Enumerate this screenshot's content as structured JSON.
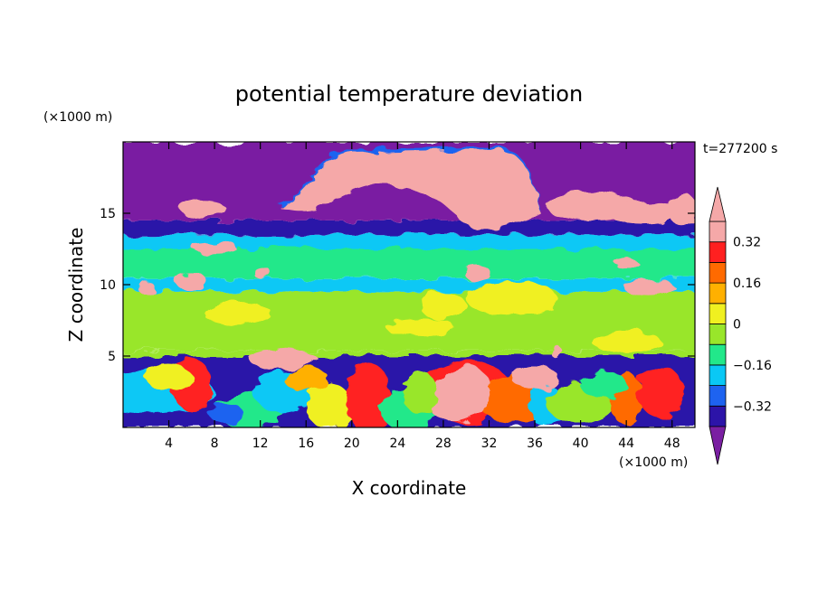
{
  "chart_data": {
    "type": "heatmap",
    "title": "potential temperature deviation",
    "xlabel": "X coordinate",
    "ylabel": "Z coordinate",
    "x_unit": "(×1000 m)",
    "y_unit": "(×1000 m)",
    "time_label": "t=277200 s",
    "xlim": [
      0,
      50
    ],
    "ylim": [
      0,
      20
    ],
    "x_ticks": [
      4,
      8,
      12,
      16,
      20,
      24,
      28,
      32,
      36,
      40,
      44,
      48
    ],
    "y_ticks": [
      5,
      10,
      15
    ],
    "colorbar": {
      "levels": [
        -0.4,
        -0.32,
        -0.24,
        -0.16,
        -0.08,
        0,
        0.08,
        0.16,
        0.24,
        0.32,
        0.4
      ],
      "colors": [
        "#7a1fa2",
        "#2c14a8",
        "#1e63f0",
        "#0ac8f5",
        "#22e88a",
        "#99e62a",
        "#f0f020",
        "#ffb000",
        "#ff6a00",
        "#ff2020",
        "#f5a8a8"
      ],
      "tick_values": [
        0.32,
        0.16,
        0,
        -0.16,
        -0.32
      ],
      "tick_labels": [
        "0.32",
        "0.16",
        "0",
        "−0.16",
        "−0.32"
      ],
      "extend": "both"
    }
  }
}
